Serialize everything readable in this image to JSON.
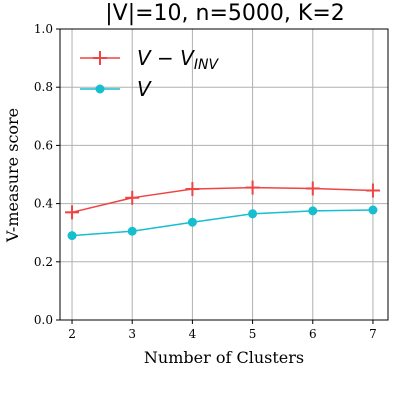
{
  "chart_data": {
    "type": "line",
    "title": "|V|=10, n=5000, K=2",
    "xlabel": "Number of Clusters",
    "ylabel": "V-measure score",
    "x": [
      2,
      3,
      4,
      5,
      6,
      7
    ],
    "xlim": [
      1.8,
      7.25
    ],
    "ylim": [
      0.0,
      1.0
    ],
    "xticks": [
      "2",
      "3",
      "4",
      "5",
      "6",
      "7"
    ],
    "yticks": [
      "0.0",
      "0.2",
      "0.4",
      "0.6",
      "0.8",
      "1.0"
    ],
    "grid": true,
    "legend_position": "top-left",
    "series": [
      {
        "name": "V − V_INV",
        "values": [
          0.37,
          0.42,
          0.45,
          0.455,
          0.452,
          0.445
        ],
        "color": "#ef4444",
        "marker": "plus"
      },
      {
        "name": "V",
        "values": [
          0.29,
          0.305,
          0.336,
          0.365,
          0.375,
          0.378
        ],
        "color": "#17becf",
        "marker": "circle"
      }
    ],
    "legend": [
      {
        "main": "V − V",
        "sub": "INV"
      },
      {
        "main": "V",
        "sub": ""
      }
    ]
  }
}
